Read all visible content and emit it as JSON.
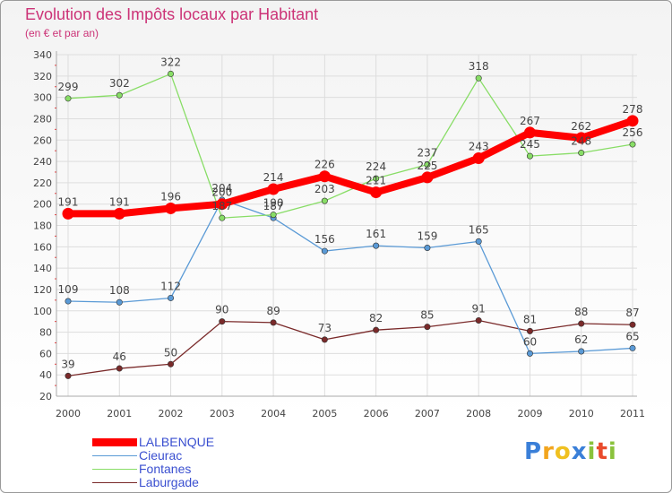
{
  "header": {
    "title": "Evolution des Impôts locaux par Habitant",
    "subtitle": "(en € et par an)"
  },
  "logo": {
    "letters": [
      "P",
      "r",
      "o",
      "x",
      "i",
      "t",
      "i"
    ]
  },
  "chart_data": {
    "type": "line",
    "title": "Evolution des Impôts locaux par Habitant",
    "subtitle": "(en € et par an)",
    "xlabel": "",
    "ylabel": "",
    "categories": [
      "2000",
      "2001",
      "2002",
      "2003",
      "2004",
      "2005",
      "2006",
      "2007",
      "2008",
      "2009",
      "2010",
      "2011"
    ],
    "ylim": [
      20,
      340
    ],
    "ytick_step": 20,
    "grid": true,
    "legend_position": "bottom-left",
    "series": [
      {
        "name": "LALBENQUE",
        "color": "#ff0000",
        "labels": [
          "191",
          "191",
          "196",
          "200",
          "214",
          "226",
          "211",
          "225",
          "243",
          "267",
          "262",
          "278"
        ],
        "values": [
          191,
          191,
          196,
          200,
          214,
          226,
          211,
          225,
          243,
          267,
          262,
          278
        ]
      },
      {
        "name": "Cieurac",
        "color": "#5a9ad6",
        "labels": [
          "109",
          "108",
          "112",
          "204",
          "187",
          "156",
          "161",
          "159",
          "165",
          "60",
          "62",
          "65"
        ],
        "values": [
          109,
          108,
          112,
          204,
          187,
          156,
          161,
          159,
          165,
          60,
          62,
          65
        ]
      },
      {
        "name": "Fontanes",
        "color": "#88dd66",
        "labels": [
          "299",
          "302",
          "322",
          "187",
          "190",
          "203",
          "224",
          "237",
          "318",
          "245",
          "248",
          "256"
        ],
        "values": [
          299,
          302,
          322,
          187,
          190,
          203,
          224,
          237,
          318,
          245,
          248,
          256
        ]
      },
      {
        "name": "Laburgade",
        "color": "#7a2a2a",
        "labels": [
          "39",
          "46",
          "50",
          "90",
          "89",
          "73",
          "82",
          "85",
          "91",
          "81",
          "88",
          "87"
        ],
        "values": [
          39,
          46,
          50,
          90,
          89,
          73,
          82,
          85,
          91,
          81,
          88,
          87
        ]
      }
    ]
  }
}
